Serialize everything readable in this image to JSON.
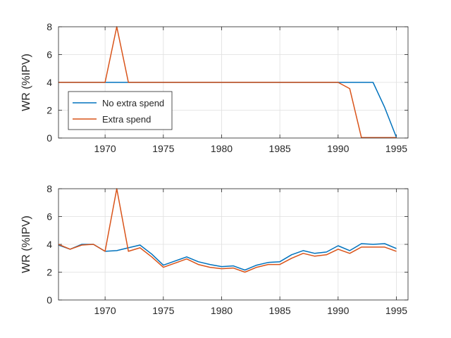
{
  "chart_data": [
    {
      "type": "line",
      "xlim": [
        1966,
        1996
      ],
      "ylim": [
        0,
        8
      ],
      "ylabel": "WR (%IPV)",
      "xticks": [
        1970,
        1975,
        1980,
        1985,
        1990,
        1995
      ],
      "yticks": [
        0,
        2,
        4,
        6,
        8
      ],
      "grid": true,
      "legend_position": "lower-left",
      "series": [
        {
          "name": "No extra spend",
          "color": "#0072BD",
          "x": [
            1966,
            1967,
            1968,
            1969,
            1970,
            1971,
            1972,
            1973,
            1974,
            1975,
            1976,
            1977,
            1978,
            1979,
            1980,
            1981,
            1982,
            1983,
            1984,
            1985,
            1986,
            1987,
            1988,
            1989,
            1990,
            1991,
            1992,
            1993,
            1994,
            1995
          ],
          "y": [
            4,
            4,
            4,
            4,
            4,
            4,
            4,
            4,
            4,
            4,
            4,
            4,
            4,
            4,
            4,
            4,
            4,
            4,
            4,
            4,
            4,
            4,
            4,
            4,
            4,
            4,
            4,
            4,
            2.2,
            0.05
          ]
        },
        {
          "name": "Extra spend",
          "color": "#D95319",
          "x": [
            1966,
            1967,
            1968,
            1969,
            1970,
            1971,
            1972,
            1973,
            1974,
            1975,
            1976,
            1977,
            1978,
            1979,
            1980,
            1981,
            1982,
            1983,
            1984,
            1985,
            1986,
            1987,
            1988,
            1989,
            1990,
            1991,
            1992,
            1993,
            1994,
            1995
          ],
          "y": [
            4,
            4,
            4,
            4,
            4,
            8,
            4,
            4,
            4,
            4,
            4,
            4,
            4,
            4,
            4,
            4,
            4,
            4,
            4,
            4,
            4,
            4,
            4,
            4,
            4,
            3.55,
            0.03,
            0.03,
            0.03,
            0.03
          ]
        }
      ]
    },
    {
      "type": "line",
      "xlim": [
        1966,
        1996
      ],
      "ylim": [
        0,
        8
      ],
      "ylabel": "WR (%IPV)",
      "xticks": [
        1970,
        1975,
        1980,
        1985,
        1990,
        1995
      ],
      "yticks": [
        0,
        2,
        4,
        6,
        8
      ],
      "grid": true,
      "series": [
        {
          "name": "No extra spend",
          "color": "#0072BD",
          "x": [
            1966,
            1967,
            1968,
            1969,
            1970,
            1971,
            1972,
            1973,
            1974,
            1975,
            1976,
            1977,
            1978,
            1979,
            1980,
            1981,
            1982,
            1983,
            1984,
            1985,
            1986,
            1987,
            1988,
            1989,
            1990,
            1991,
            1992,
            1993,
            1994,
            1995
          ],
          "y": [
            3.95,
            3.65,
            4.0,
            4.0,
            3.5,
            3.55,
            3.75,
            3.95,
            3.3,
            2.5,
            2.8,
            3.1,
            2.75,
            2.55,
            2.4,
            2.45,
            2.15,
            2.5,
            2.7,
            2.75,
            3.25,
            3.55,
            3.35,
            3.45,
            3.9,
            3.55,
            4.05,
            4.0,
            4.05,
            3.7
          ]
        },
        {
          "name": "Extra spend",
          "color": "#D95319",
          "x": [
            1966,
            1967,
            1968,
            1969,
            1970,
            1971,
            1972,
            1973,
            1974,
            1975,
            1976,
            1977,
            1978,
            1979,
            1980,
            1981,
            1982,
            1983,
            1984,
            1985,
            1986,
            1987,
            1988,
            1989,
            1990,
            1991,
            1992,
            1993,
            1994,
            1995
          ],
          "y": [
            4.0,
            3.65,
            3.95,
            4.0,
            3.5,
            8.0,
            3.5,
            3.75,
            3.1,
            2.35,
            2.65,
            2.95,
            2.55,
            2.35,
            2.25,
            2.3,
            2.0,
            2.35,
            2.55,
            2.55,
            3.0,
            3.35,
            3.15,
            3.25,
            3.65,
            3.35,
            3.8,
            3.8,
            3.8,
            3.5
          ]
        }
      ]
    }
  ]
}
